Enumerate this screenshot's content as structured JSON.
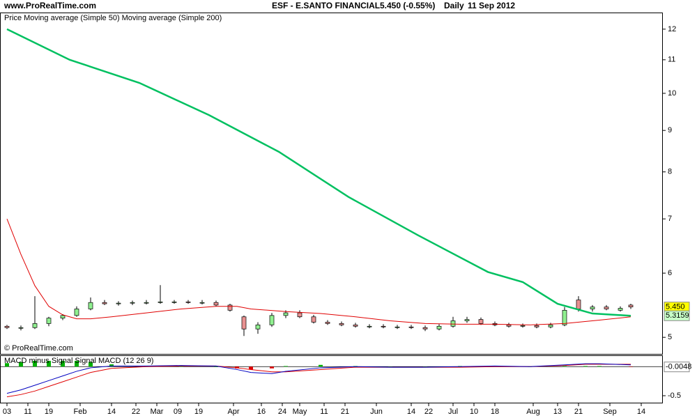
{
  "header": {
    "site": "www.ProRealTime.com",
    "title": "ESF - E.SANTO FINANCIAL",
    "quote": "5.450 (-0.55%)",
    "period": "Daily",
    "date": "11 Sep 2012"
  },
  "copyright": "© ProRealTime.com",
  "chart_data": [
    {
      "type": "candlestick",
      "log": true,
      "xlim": [
        -2,
        188
      ],
      "ylim": [
        4.77,
        12.58
      ],
      "yticks": [
        5,
        6,
        7,
        8,
        9,
        10,
        11,
        12
      ],
      "xticks": [
        {
          "value": 0,
          "label": "03"
        },
        {
          "value": 6,
          "label": "11"
        },
        {
          "value": 12,
          "label": "19"
        },
        {
          "value": 21,
          "label": "Feb"
        },
        {
          "value": 30,
          "label": "14"
        },
        {
          "value": 37,
          "label": "22"
        },
        {
          "value": 43,
          "label": "Mar"
        },
        {
          "value": 49,
          "label": "09"
        },
        {
          "value": 55,
          "label": "19"
        },
        {
          "value": 65,
          "label": "Apr"
        },
        {
          "value": 73,
          "label": "16"
        },
        {
          "value": 79,
          "label": "24"
        },
        {
          "value": 84,
          "label": "May"
        },
        {
          "value": 91,
          "label": "11"
        },
        {
          "value": 97,
          "label": "21"
        },
        {
          "value": 106,
          "label": "Jun"
        },
        {
          "value": 116,
          "label": "14"
        },
        {
          "value": 121,
          "label": "22"
        },
        {
          "value": 128,
          "label": "Jul"
        },
        {
          "value": 134,
          "label": "10"
        },
        {
          "value": 140,
          "label": "18"
        },
        {
          "value": 151,
          "label": "Aug"
        },
        {
          "value": 158,
          "label": "13"
        },
        {
          "value": 164,
          "label": "21"
        },
        {
          "value": 173,
          "label": "Sep"
        },
        {
          "value": 182,
          "label": "14"
        }
      ],
      "series": [
        {
          "name": "Price",
          "color": "#000000",
          "x": [
            0,
            4,
            8,
            12,
            16,
            20,
            24,
            28,
            32,
            36,
            40,
            44,
            48,
            52,
            56,
            60,
            64,
            68,
            72,
            76,
            80,
            84,
            88,
            92,
            96,
            100,
            104,
            108,
            112,
            116,
            120,
            124,
            128,
            132,
            136,
            140,
            144,
            148,
            152,
            156,
            160,
            164,
            168,
            172,
            176,
            179
          ],
          "open": [
            5.16,
            5.14,
            5.14,
            5.2,
            5.28,
            5.32,
            5.42,
            5.52,
            5.5,
            5.51,
            5.52,
            5.52,
            5.53,
            5.53,
            5.52,
            5.52,
            5.48,
            5.3,
            5.12,
            5.18,
            5.32,
            5.36,
            5.3,
            5.22,
            5.2,
            5.18,
            5.16,
            5.16,
            5.15,
            5.15,
            5.14,
            5.12,
            5.16,
            5.24,
            5.26,
            5.2,
            5.18,
            5.16,
            5.17,
            5.15,
            5.18,
            5.56,
            5.42,
            5.45,
            5.4,
            5.48
          ],
          "high": [
            5.18,
            5.17,
            5.62,
            5.3,
            5.34,
            5.46,
            5.6,
            5.56,
            5.54,
            5.55,
            5.56,
            5.8,
            5.56,
            5.56,
            5.56,
            5.55,
            5.5,
            5.32,
            5.22,
            5.36,
            5.4,
            5.4,
            5.33,
            5.25,
            5.23,
            5.21,
            5.19,
            5.19,
            5.18,
            5.18,
            5.17,
            5.19,
            5.3,
            5.3,
            5.29,
            5.23,
            5.21,
            5.2,
            5.2,
            5.21,
            5.45,
            5.62,
            5.48,
            5.48,
            5.46,
            5.5
          ],
          "low": [
            5.12,
            5.1,
            5.12,
            5.16,
            5.25,
            5.3,
            5.4,
            5.48,
            5.47,
            5.48,
            5.49,
            5.5,
            5.5,
            5.5,
            5.49,
            5.46,
            5.38,
            5.02,
            5.05,
            5.15,
            5.28,
            5.28,
            5.2,
            5.18,
            5.16,
            5.14,
            5.13,
            5.13,
            5.12,
            5.12,
            5.09,
            5.1,
            5.14,
            5.21,
            5.18,
            5.16,
            5.14,
            5.14,
            5.13,
            5.13,
            5.16,
            5.38,
            5.38,
            5.4,
            5.38,
            5.42
          ],
          "close": [
            5.14,
            5.14,
            5.2,
            5.28,
            5.32,
            5.42,
            5.52,
            5.5,
            5.51,
            5.52,
            5.52,
            5.53,
            5.53,
            5.52,
            5.52,
            5.48,
            5.4,
            5.12,
            5.18,
            5.32,
            5.36,
            5.3,
            5.22,
            5.2,
            5.18,
            5.16,
            5.16,
            5.15,
            5.15,
            5.14,
            5.12,
            5.16,
            5.24,
            5.26,
            5.2,
            5.18,
            5.16,
            5.17,
            5.15,
            5.18,
            5.4,
            5.42,
            5.45,
            5.42,
            5.43,
            5.45
          ]
        },
        {
          "name": "Moving average (Simple 50)",
          "color": "#e00000",
          "x": [
            0,
            4,
            8,
            12,
            16,
            20,
            24,
            30,
            40,
            50,
            60,
            66,
            70,
            80,
            90,
            100,
            110,
            120,
            130,
            140,
            150,
            160,
            170,
            179
          ],
          "values": [
            7.0,
            6.33,
            5.79,
            5.46,
            5.33,
            5.27,
            5.27,
            5.3,
            5.36,
            5.42,
            5.46,
            5.46,
            5.42,
            5.38,
            5.35,
            5.3,
            5.24,
            5.2,
            5.19,
            5.19,
            5.18,
            5.2,
            5.25,
            5.3
          ]
        },
        {
          "name": "Moving average (Simple 200)",
          "color": "#00c060",
          "x": [
            0,
            18,
            38,
            58,
            78,
            98,
            118,
            138,
            148,
            158,
            168,
            179
          ],
          "values": [
            12.0,
            11.0,
            10.3,
            9.4,
            8.47,
            7.45,
            6.68,
            6.02,
            5.85,
            5.5,
            5.35,
            5.3159
          ]
        }
      ],
      "last_labels": [
        {
          "value": 5.45,
          "label": "5.450",
          "color": "#ffff00"
        },
        {
          "value": 5.3159,
          "label": "5.3159",
          "color": "#c8ffc8"
        }
      ]
    },
    {
      "type": "macd",
      "xlim": [
        -2,
        188
      ],
      "ylim": [
        -0.62,
        0.195
      ],
      "yticks": [
        -0.5
      ],
      "series": [
        {
          "name": "MACD minus Signal",
          "color": "#00b000",
          "x": [
            0,
            4,
            8,
            12,
            16,
            20,
            24,
            30,
            40,
            50,
            60,
            66,
            70,
            76,
            80,
            90,
            100,
            110,
            120,
            130,
            140,
            150,
            160,
            166,
            170,
            179
          ],
          "values": [
            0.06,
            0.08,
            0.1,
            0.1,
            0.1,
            0.1,
            0.08,
            0.04,
            0.01,
            0.01,
            0,
            -0.03,
            -0.05,
            -0.03,
            0.01,
            0.03,
            0.01,
            0,
            0,
            0.01,
            0.01,
            0,
            0.01,
            0.01,
            0.01,
            -0.0048
          ]
        },
        {
          "name": "Signal",
          "color": "#e00000",
          "x": [
            0,
            4,
            8,
            12,
            16,
            20,
            24,
            30,
            40,
            50,
            60,
            66,
            70,
            76,
            80,
            90,
            100,
            110,
            120,
            130,
            140,
            150,
            160,
            166,
            170,
            179
          ],
          "values": [
            -0.52,
            -0.48,
            -0.42,
            -0.34,
            -0.26,
            -0.18,
            -0.1,
            -0.03,
            0.0,
            0.01,
            0.01,
            -0.02,
            -0.05,
            -0.09,
            -0.09,
            -0.05,
            -0.01,
            -0.01,
            -0.01,
            -0.01,
            0.0,
            0.0,
            0.02,
            0.04,
            0.04,
            0.04
          ]
        },
        {
          "name": "MACD (12 26 9)",
          "color": "#0000c0",
          "x": [
            0,
            4,
            8,
            12,
            16,
            20,
            24,
            30,
            40,
            50,
            60,
            66,
            70,
            76,
            80,
            90,
            100,
            110,
            120,
            130,
            140,
            150,
            160,
            166,
            170,
            179
          ],
          "values": [
            -0.46,
            -0.4,
            -0.32,
            -0.24,
            -0.16,
            -0.08,
            -0.02,
            0.01,
            0.01,
            0.02,
            0.01,
            -0.05,
            -0.1,
            -0.12,
            -0.08,
            -0.02,
            0.0,
            -0.01,
            -0.01,
            0.0,
            0.01,
            0.0,
            0.03,
            0.05,
            0.05,
            0.03
          ]
        }
      ],
      "last_labels": [
        {
          "value": -0.0048,
          "label": "-0.0048",
          "color": "#ffffff"
        }
      ]
    }
  ]
}
